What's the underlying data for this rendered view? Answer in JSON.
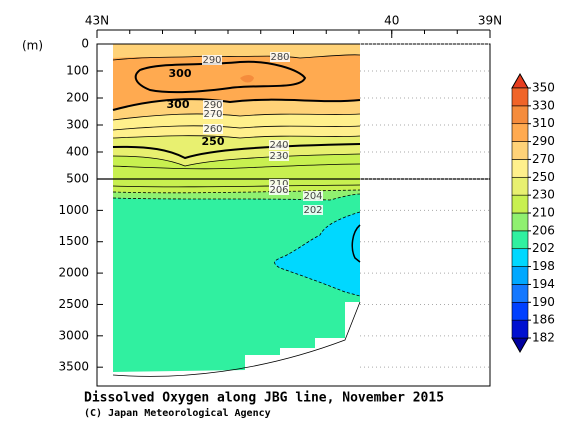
{
  "chart_data": {
    "type": "contour",
    "title": "Dissolved Oxygen along JBG line, November 2015",
    "credit": "(C) Japan Meteorological Agency",
    "ylabel": "(m)",
    "xlim": [
      43,
      39
    ],
    "xticks": [
      {
        "value": 43,
        "label": "43N"
      },
      40,
      {
        "value": 39,
        "label": "39N"
      }
    ],
    "panels": [
      {
        "ylim": [
          0,
          500
        ],
        "yticks": [
          0,
          100,
          200,
          300,
          400,
          500
        ]
      },
      {
        "ylim": [
          500,
          3800
        ],
        "yticks": [
          1000,
          1500,
          2000,
          2500,
          3000,
          3500
        ]
      }
    ],
    "contour_labels": [
      290,
      280,
      300,
      300,
      290,
      270,
      260,
      250,
      240,
      230,
      210,
      206,
      204,
      202
    ],
    "colorbar": {
      "ticks": [
        182,
        186,
        190,
        194,
        198,
        202,
        206,
        210,
        230,
        250,
        270,
        290,
        310,
        330,
        350
      ],
      "colors": [
        "#0000a0",
        "#0010d0",
        "#0040ff",
        "#1478ff",
        "#00a8ff",
        "#00d8ff",
        "#30f0a0",
        "#90f070",
        "#c8f050",
        "#e8f070",
        "#fff08c",
        "#ffd278",
        "#ffaa50",
        "#f58c3c",
        "#f06428",
        "#e63c1e"
      ]
    }
  }
}
